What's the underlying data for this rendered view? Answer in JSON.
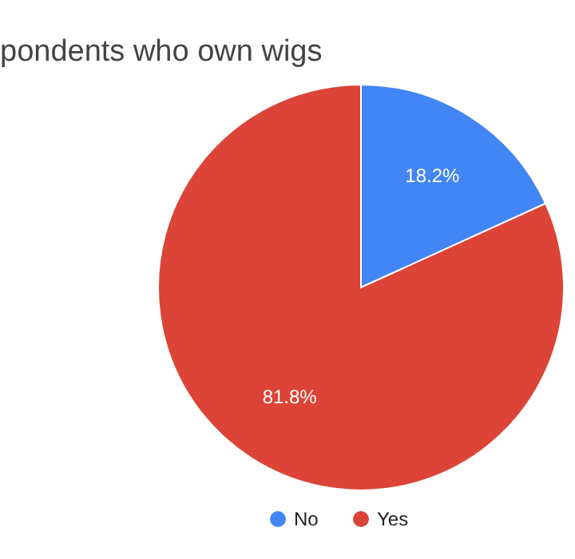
{
  "chart_data": {
    "type": "pie",
    "title": "pondents who own wigs",
    "categories": [
      "No",
      "Yes"
    ],
    "values": [
      18.2,
      81.8
    ],
    "colors": [
      "#4285f4",
      "#db4437"
    ],
    "value_labels": [
      "18.2%",
      "81.8%"
    ],
    "legend": "bottom"
  }
}
